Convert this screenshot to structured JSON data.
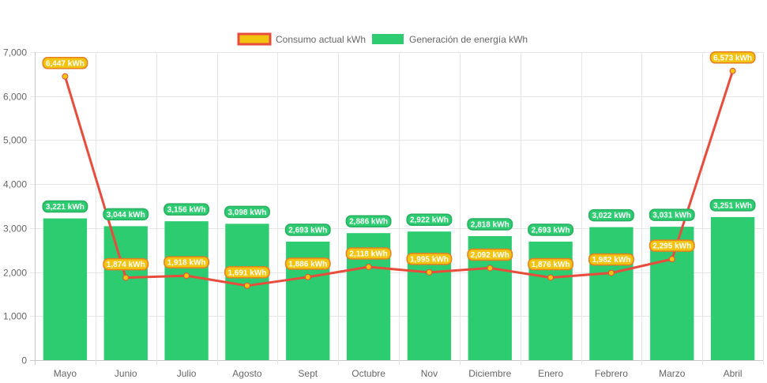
{
  "chart_data": {
    "type": "bar",
    "categories": [
      "Mayo",
      "Junio",
      "Julio",
      "Agosto",
      "Sept",
      "Octubre",
      "Nov",
      "Diciembre",
      "Enero",
      "Febrero",
      "Marzo",
      "Abril"
    ],
    "ylim": [
      0,
      7000
    ],
    "yticks": [
      0,
      1000,
      2000,
      3000,
      4000,
      5000,
      6000,
      7000
    ],
    "ytick_labels": [
      "0",
      "1,000",
      "2,000",
      "3,000",
      "4,000",
      "5,000",
      "6,000",
      "7,000"
    ],
    "grid": true,
    "legend_position": "top-center",
    "series": [
      {
        "name": "Consumo actual kWh",
        "type": "line",
        "color": "#e74c3c",
        "fill": "#f1c40f",
        "values": [
          6447,
          1874,
          1918,
          1691,
          1886,
          2118,
          1995,
          2092,
          1876,
          1982,
          2295,
          6573
        ],
        "labels": [
          "6,447 kWh",
          "1,874 kWh",
          "1,918 kWh",
          "1,691 kWh",
          "1,886 kWh",
          "2,118 kWh",
          "1,995 kWh",
          "2,092 kWh",
          "1,876 kWh",
          "1,982 kWh",
          "2,295 kWh",
          "6,573 kWh"
        ]
      },
      {
        "name": "Generación de energía kWh",
        "type": "bar",
        "color": "#2ecc71",
        "values": [
          3221,
          3044,
          3156,
          3098,
          2693,
          2886,
          2922,
          2818,
          2693,
          3022,
          3031,
          3251
        ],
        "labels": [
          "3,221 kWh",
          "3,044 kWh",
          "3,156 kWh",
          "3,098 kWh",
          "2,693 kWh",
          "2,886 kWh",
          "2,922 kWh",
          "2,818 kWh",
          "2,693 kWh",
          "3,022 kWh",
          "3,031 kWh",
          "3,251 kWh"
        ]
      }
    ]
  }
}
